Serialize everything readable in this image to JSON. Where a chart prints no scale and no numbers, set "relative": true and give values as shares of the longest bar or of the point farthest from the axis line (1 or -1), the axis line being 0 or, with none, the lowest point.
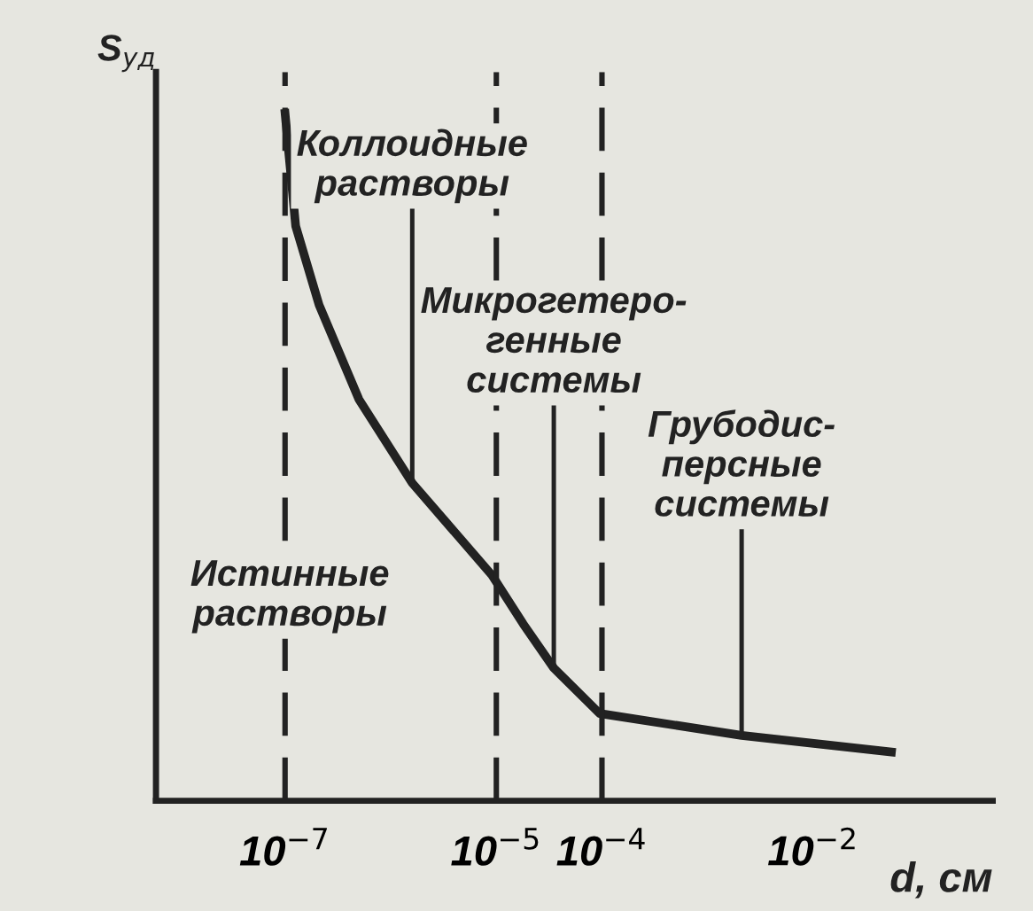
{
  "chart_data": {
    "type": "line",
    "relative": true,
    "xlabel": "d, см",
    "ylabel": "S$_{уд}$",
    "log": "x",
    "x": [
      1e-07,
      1.26e-07,
      2.1e-07,
      5e-07,
      1.6e-06,
      9.1e-06,
      1.8e-05,
      3.5e-05,
      9.5e-05,
      0.0021,
      0.055
    ],
    "series": [
      {
        "color": "#222222",
        "values": [
          1.0,
          0.836,
          0.721,
          0.584,
          0.462,
          0.328,
          0.257,
          0.193,
          0.127,
          0.095,
          0.071
        ]
      }
    ],
    "xlim": [
      6e-09,
      0.5
    ],
    "xticks": [
      {
        "value": 1e-07,
        "label": "10$^{−7}$"
      },
      {
        "value": 1e-05,
        "label": "10$^{−5}$"
      },
      {
        "value": 0.0001,
        "label": "10$^{−4}$"
      },
      {
        "value": 0.01,
        "label": "10$^{−2}$"
      }
    ],
    "ref_lines": [
      {
        "axis": "x",
        "value": 1e-07,
        "line_style": "dashed",
        "color": "#222222"
      },
      {
        "axis": "x",
        "value": 1e-05,
        "line_style": "dashed",
        "color": "#222222"
      },
      {
        "axis": "x",
        "value": 0.0001,
        "line_style": "dashed",
        "color": "#222222"
      }
    ],
    "annotations": [
      {
        "text": "Коллоидные\nрастворы",
        "x": 1.6e-06,
        "y": 0.462
      },
      {
        "text": "Микрогетеро-\nгенные\nсистемы",
        "x": 3.5e-05,
        "y": 0.193
      },
      {
        "text": "Грубодис-\nперсные\nсистемы",
        "x": 0.0021,
        "y": 0.095
      },
      "Истинные\nрастворы"
    ],
    "grid": false,
    "legend": false
  }
}
